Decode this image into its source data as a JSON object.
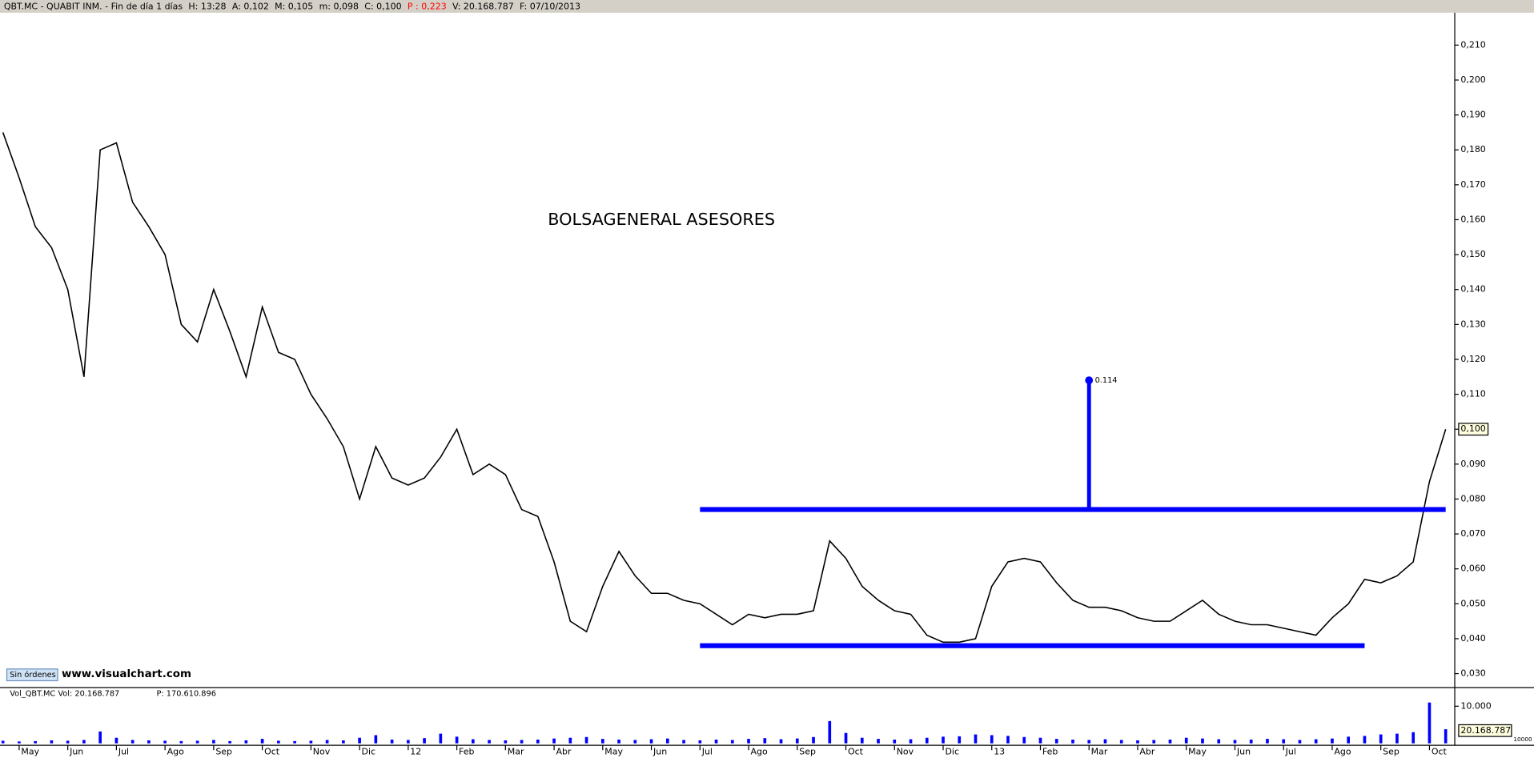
{
  "header": {
    "title": "QBT.MC - QUABIT INM. - Fin de día 1 días",
    "fields": [
      {
        "text": "H: 13:28",
        "color": "#000000"
      },
      {
        "text": "A: 0,102",
        "color": "#000000"
      },
      {
        "text": "M: 0,105",
        "color": "#000000"
      },
      {
        "text": "m: 0,098",
        "color": "#000000"
      },
      {
        "text": "C: 0,100",
        "color": "#000000"
      },
      {
        "text": "P : 0,223",
        "color": "#ff0000"
      },
      {
        "text": "V: 20.168.787",
        "color": "#000000"
      },
      {
        "text": "F: 07/10/2013",
        "color": "#000000"
      }
    ]
  },
  "footer": {
    "button": "Sin órdenes",
    "site": "www.visualchart.com"
  },
  "chart_data": [
    {
      "type": "line",
      "annotation": "BOLSAGENERAL ASESORES",
      "color": "#000000",
      "values": [
        0.185,
        0.172,
        0.158,
        0.152,
        0.14,
        0.115,
        0.18,
        0.182,
        0.165,
        0.158,
        0.15,
        0.13,
        0.125,
        0.14,
        0.128,
        0.115,
        0.135,
        0.122,
        0.12,
        0.11,
        0.103,
        0.095,
        0.08,
        0.095,
        0.086,
        0.084,
        0.086,
        0.092,
        0.1,
        0.087,
        0.09,
        0.087,
        0.077,
        0.075,
        0.062,
        0.045,
        0.042,
        0.055,
        0.065,
        0.058,
        0.053,
        0.053,
        0.051,
        0.05,
        0.047,
        0.044,
        0.047,
        0.046,
        0.047,
        0.047,
        0.048,
        0.068,
        0.063,
        0.055,
        0.051,
        0.048,
        0.047,
        0.041,
        0.039,
        0.039,
        0.04,
        0.055,
        0.062,
        0.063,
        0.062,
        0.056,
        0.051,
        0.049,
        0.049,
        0.048,
        0.046,
        0.045,
        0.045,
        0.048,
        0.051,
        0.047,
        0.045,
        0.044,
        0.044,
        0.043,
        0.042,
        0.041,
        0.046,
        0.05,
        0.057,
        0.056,
        0.058,
        0.062,
        0.085,
        0.1
      ],
      "ylim": [
        0.026,
        0.219
      ],
      "yticks": [
        {
          "value": 0.03,
          "label": "0,030"
        },
        {
          "value": 0.04,
          "label": "0,040"
        },
        {
          "value": 0.05,
          "label": "0,050"
        },
        {
          "value": 0.06,
          "label": "0,060"
        },
        {
          "value": 0.07,
          "label": "0,070"
        },
        {
          "value": 0.08,
          "label": "0,080"
        },
        {
          "value": 0.09,
          "label": "0,090"
        },
        {
          "value": 0.1,
          "label": "0,100"
        },
        {
          "value": 0.11,
          "label": "0,110"
        },
        {
          "value": 0.12,
          "label": "0,120"
        },
        {
          "value": 0.13,
          "label": "0,130"
        },
        {
          "value": 0.14,
          "label": "0,140"
        },
        {
          "value": 0.15,
          "label": "0,150"
        },
        {
          "value": 0.16,
          "label": "0,160"
        },
        {
          "value": 0.17,
          "label": "0,170"
        },
        {
          "value": 0.18,
          "label": "0,180"
        },
        {
          "value": 0.19,
          "label": "0,190"
        },
        {
          "value": 0.2,
          "label": "0,200"
        },
        {
          "value": 0.21,
          "label": "0,210"
        }
      ],
      "xlim": [
        0,
        89.5
      ],
      "xticks": [
        {
          "value": 1,
          "label": "May"
        },
        {
          "value": 4,
          "label": "Jun"
        },
        {
          "value": 7,
          "label": "Jul"
        },
        {
          "value": 10,
          "label": "Ago"
        },
        {
          "value": 13,
          "label": "Sep"
        },
        {
          "value": 16,
          "label": "Oct"
        },
        {
          "value": 19,
          "label": "Nov"
        },
        {
          "value": 22,
          "label": "Dic"
        },
        {
          "value": 25,
          "label": "12"
        },
        {
          "value": 28,
          "label": "Feb"
        },
        {
          "value": 31,
          "label": "Mar"
        },
        {
          "value": 34,
          "label": "Abr"
        },
        {
          "value": 37,
          "label": "May"
        },
        {
          "value": 40,
          "label": "Jun"
        },
        {
          "value": 43,
          "label": "Jul"
        },
        {
          "value": 46,
          "label": "Ago"
        },
        {
          "value": 49,
          "label": "Sep"
        },
        {
          "value": 52,
          "label": "Oct"
        },
        {
          "value": 55,
          "label": "Nov"
        },
        {
          "value": 58,
          "label": "Dic"
        },
        {
          "value": 61,
          "label": "13"
        },
        {
          "value": 64,
          "label": "Feb"
        },
        {
          "value": 67,
          "label": "Mar"
        },
        {
          "value": 70,
          "label": "Abr"
        },
        {
          "value": 73,
          "label": "May"
        },
        {
          "value": 76,
          "label": "Jun"
        },
        {
          "value": 79,
          "label": "Jul"
        },
        {
          "value": 82,
          "label": "Ago"
        },
        {
          "value": 85,
          "label": "Sep"
        },
        {
          "value": 88,
          "label": "Oct"
        }
      ],
      "last_label": {
        "value": 0.1,
        "label": "0,100"
      },
      "levels": [
        {
          "level": 0.077,
          "from": 43,
          "to": 89
        },
        {
          "level": 0.038,
          "from": 43,
          "to": 84
        }
      ],
      "target": {
        "at": 67,
        "from": 0.077,
        "to": 0.114
      },
      "drawing_color": "#0000ff"
    },
    {
      "type": "bar",
      "title": "Vol_QBT.MC  Vol: 20.168.787",
      "subtitle": "P: 170.610.896",
      "color": "#0000ff",
      "values": [
        700,
        500,
        600,
        800,
        700,
        900,
        3200,
        1500,
        900,
        800,
        700,
        600,
        700,
        900,
        600,
        800,
        1200,
        700,
        600,
        700,
        900,
        800,
        1500,
        2200,
        1000,
        900,
        1400,
        2600,
        1800,
        1100,
        900,
        800,
        900,
        1000,
        1300,
        1500,
        1700,
        1200,
        1000,
        900,
        1100,
        1300,
        900,
        800,
        1000,
        900,
        1200,
        1400,
        1100,
        1300,
        1700,
        6000,
        2800,
        1500,
        1200,
        1000,
        1100,
        1500,
        1800,
        1900,
        2400,
        2200,
        2000,
        1700,
        1500,
        1200,
        1000,
        900,
        1100,
        900,
        800,
        900,
        1000,
        1500,
        1300,
        1100,
        900,
        1000,
        1200,
        1100,
        900,
        1100,
        1300,
        1800,
        2000,
        2400,
        2600,
        3000,
        11000,
        3800
      ],
      "ylim": [
        0,
        14500
      ],
      "yticks": [
        {
          "value": 10000,
          "label": "10.000"
        }
      ],
      "last_label": "20.168.787",
      "unit_label": "10000"
    }
  ]
}
